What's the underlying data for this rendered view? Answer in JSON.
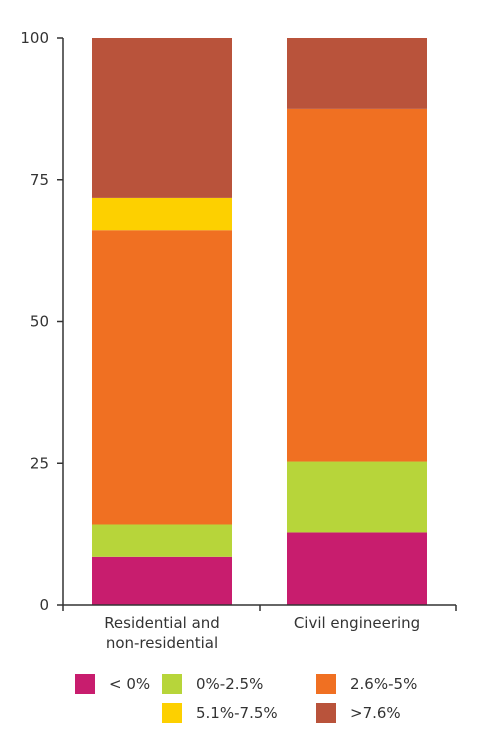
{
  "chart_data": {
    "type": "bar",
    "stacked": true,
    "categories": [
      "Residential and non-residential",
      "Civil engineering"
    ],
    "category_lines": [
      [
        "Residential and",
        "non-residential"
      ],
      [
        "Civil engineering"
      ]
    ],
    "series": [
      {
        "name": "< 0%",
        "color": "#c81d6e",
        "values": [
          8.5,
          12.8
        ]
      },
      {
        "name": "0%-2.5%",
        "color": "#b7d53a",
        "values": [
          5.7,
          12.5
        ]
      },
      {
        "name": "2.6%-5%",
        "color": "#f07022",
        "values": [
          51.9,
          62.2
        ]
      },
      {
        "name": "5.1%-7.5%",
        "color": "#fdd000",
        "values": [
          5.7,
          0
        ]
      },
      {
        "name": ">7.6%",
        "color": "#b9533b",
        "values": [
          28.2,
          12.5
        ]
      }
    ],
    "ylim": [
      0,
      100
    ],
    "yticks": [
      0,
      25,
      50,
      75,
      100
    ],
    "grid": false,
    "legend_position": "bottom",
    "xlabel": "",
    "ylabel": "",
    "title": ""
  }
}
